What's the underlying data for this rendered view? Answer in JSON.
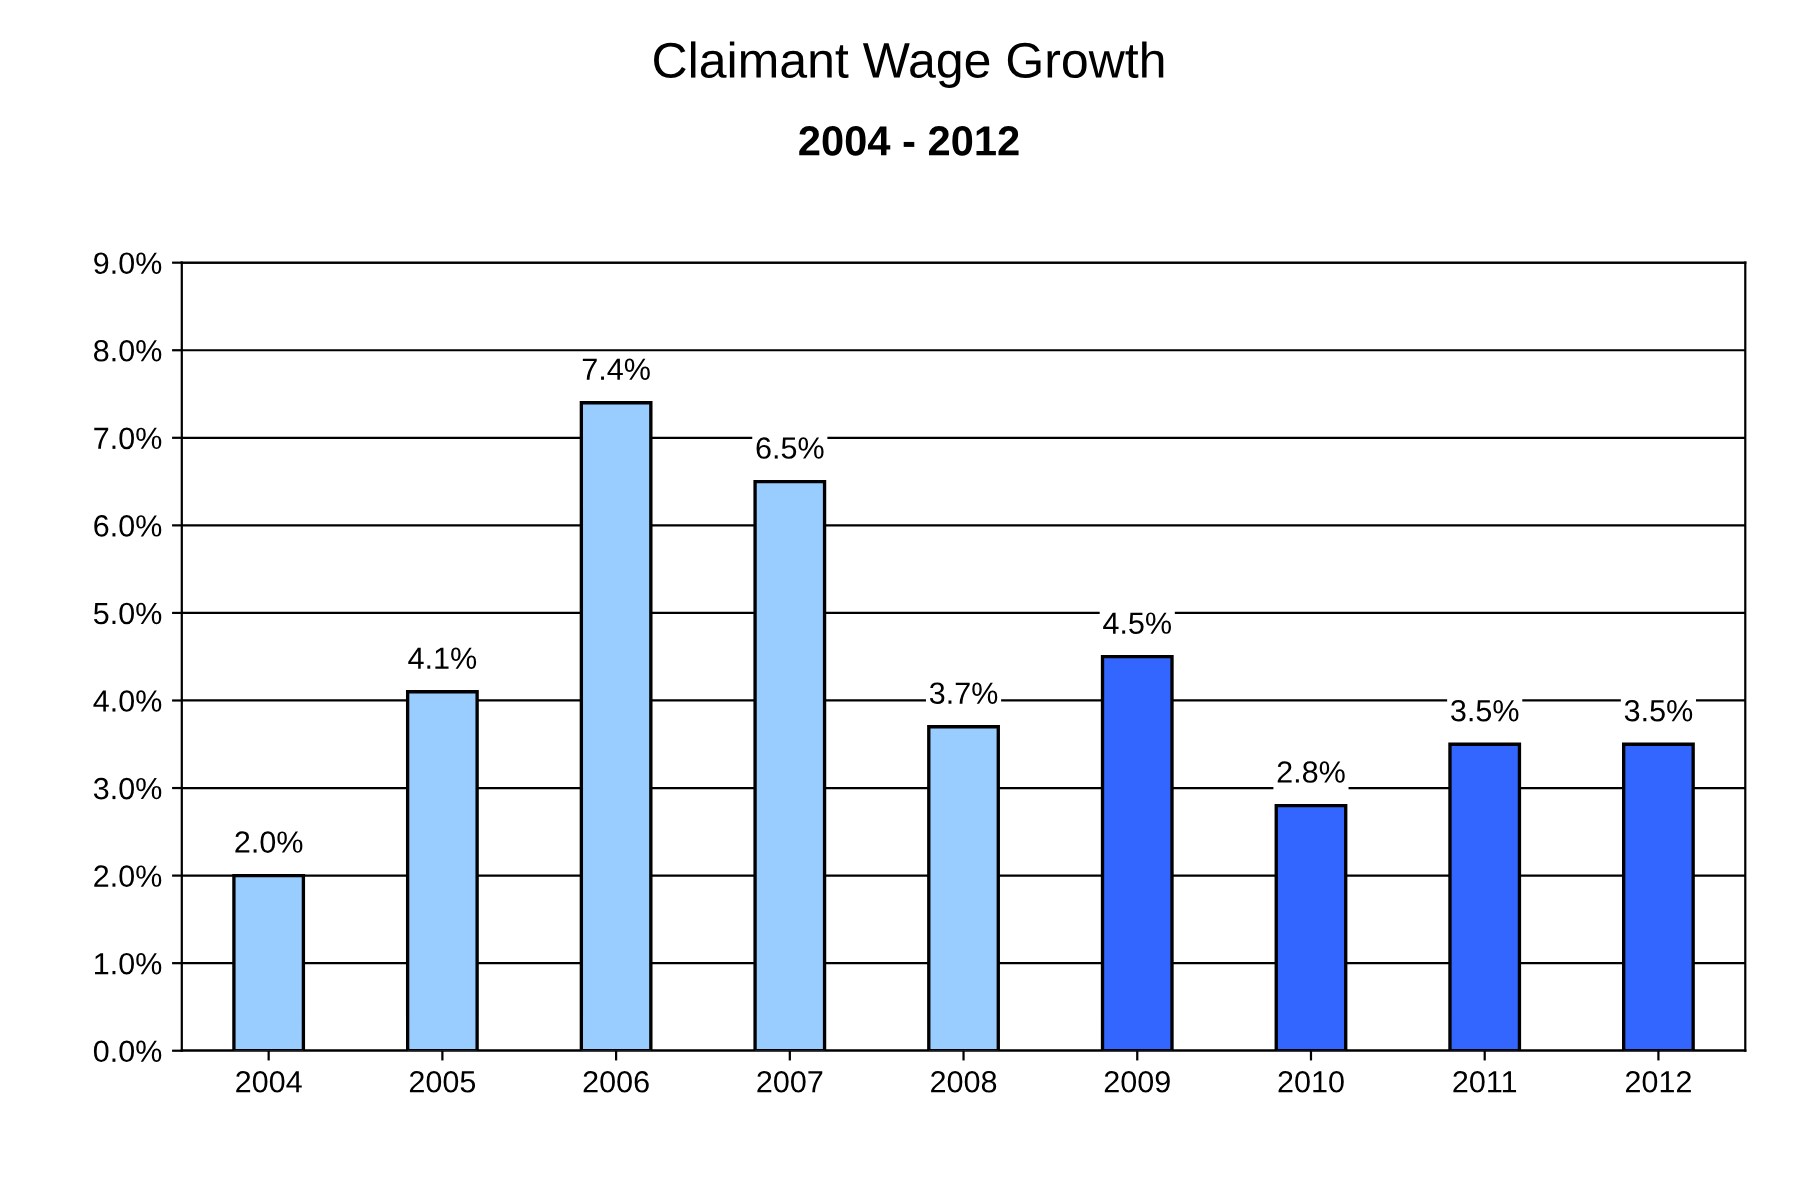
{
  "chart_data": {
    "type": "bar",
    "title": "Claimant Wage Growth",
    "subtitle": "2004 - 2012",
    "categories": [
      "2004",
      "2005",
      "2006",
      "2007",
      "2008",
      "2009",
      "2010",
      "2011",
      "2012"
    ],
    "values": [
      2.0,
      4.1,
      7.4,
      6.5,
      3.7,
      4.5,
      2.8,
      3.5,
      3.5
    ],
    "colors": [
      "#99ccff",
      "#99ccff",
      "#99ccff",
      "#99ccff",
      "#99ccff",
      "#3366ff",
      "#3366ff",
      "#3366ff",
      "#3366ff"
    ],
    "value_labels": [
      "2.0%",
      "4.1%",
      "7.4%",
      "6.5%",
      "3.7%",
      "4.5%",
      "2.8%",
      "3.5%",
      "3.5%"
    ],
    "ylim": [
      0,
      9
    ],
    "yticks": [
      {
        "value": 0,
        "label": "0.0%"
      },
      {
        "value": 1,
        "label": "1.0%"
      },
      {
        "value": 2,
        "label": "2.0%"
      },
      {
        "value": 3,
        "label": "3.0%"
      },
      {
        "value": 4,
        "label": "4.0%"
      },
      {
        "value": 5,
        "label": "5.0%"
      },
      {
        "value": 6,
        "label": "6.0%"
      },
      {
        "value": 7,
        "label": "7.0%"
      },
      {
        "value": 8,
        "label": "8.0%"
      },
      {
        "value": 9,
        "label": "9.0%"
      }
    ],
    "grid": "y"
  }
}
